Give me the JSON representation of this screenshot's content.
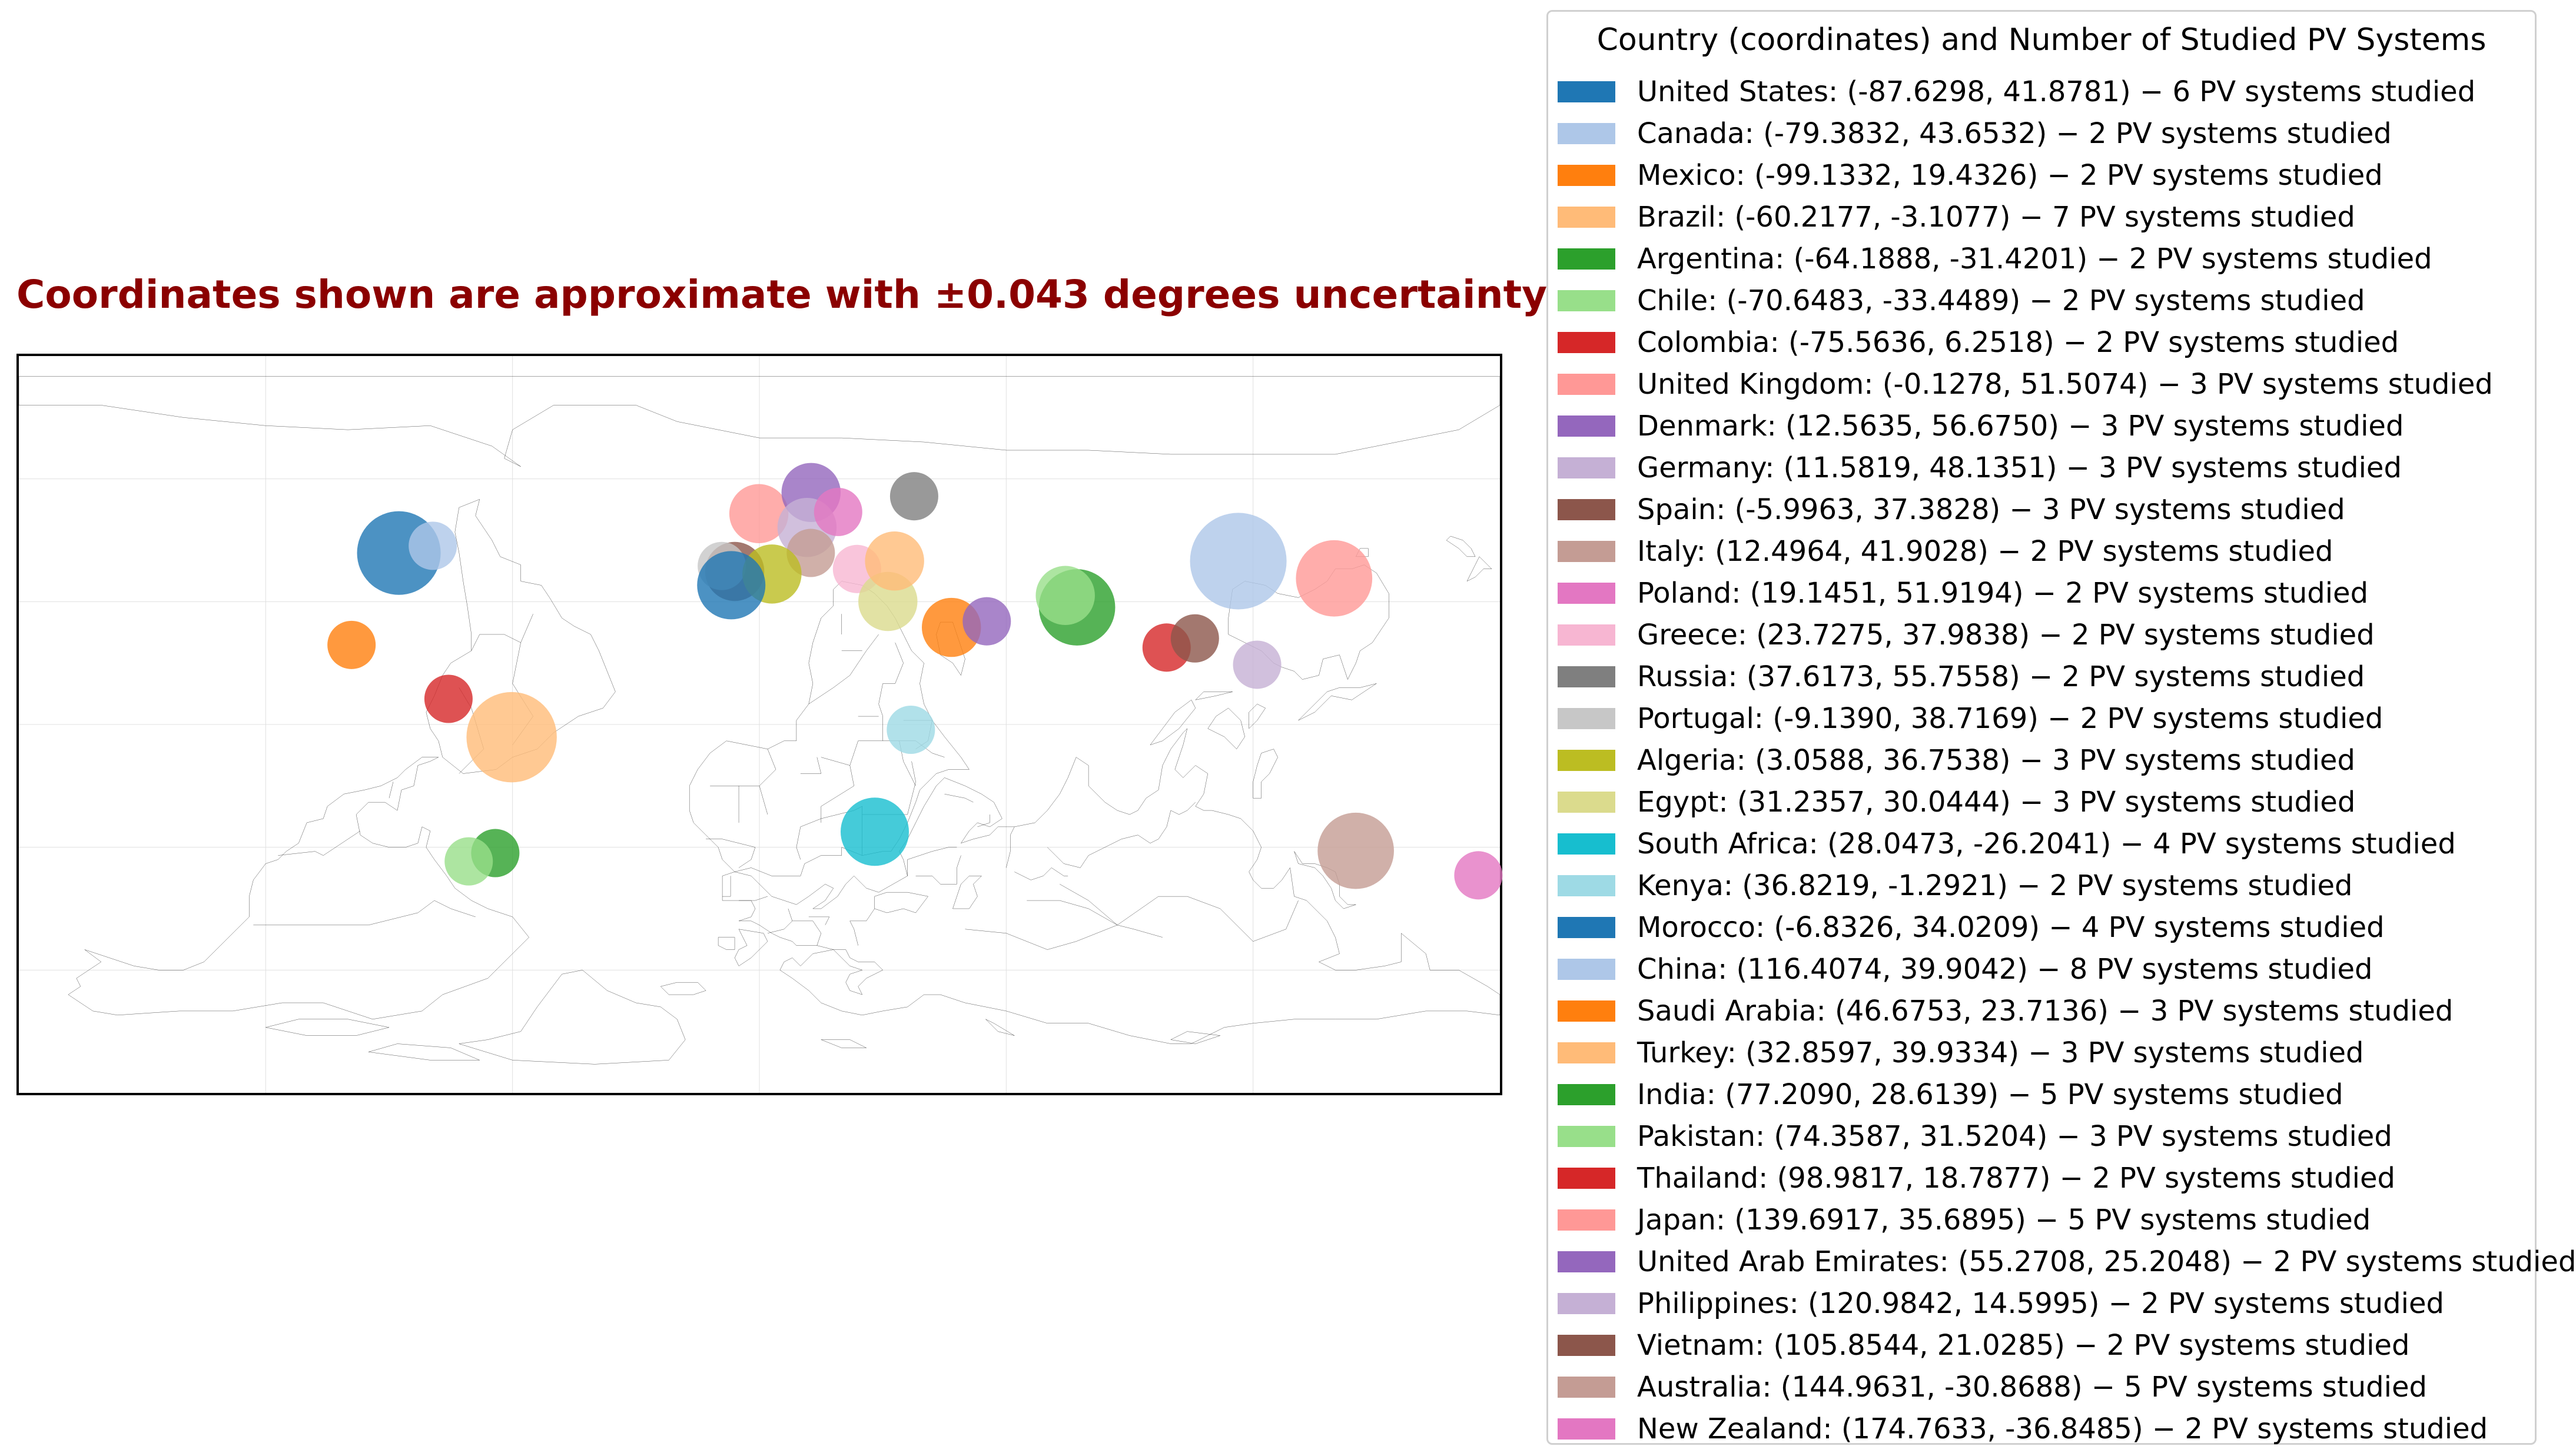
{
  "map": {
    "title": "Coordinates shown are approximate with ±0.043 degrees uncertainty",
    "extent": {
      "lon": [
        -180,
        180
      ],
      "lat": [
        -90,
        90
      ]
    },
    "gridlines": {
      "lon_step": 60,
      "lat_step": 30,
      "visible": true
    }
  },
  "legend": {
    "title": "Country (coordinates) and Number of Studied PV Systems",
    "placement": "right"
  },
  "chart_data": {
    "type": "scatter",
    "title": "Coordinates shown are approximate with ±0.043 degrees uncertainty",
    "points": [
      {
        "country": "United States",
        "lon": -87.6298,
        "lat": 41.8781,
        "count": 6,
        "color": "#1f77b4",
        "label": "United States: (-87.6298, 41.8781) − 6 PV systems studied"
      },
      {
        "country": "Canada",
        "lon": -79.3832,
        "lat": 43.6532,
        "count": 2,
        "color": "#aec7e8",
        "label": "Canada: (-79.3832, 43.6532) − 2 PV systems studied"
      },
      {
        "country": "Mexico",
        "lon": -99.1332,
        "lat": 19.4326,
        "count": 2,
        "color": "#ff7f0e",
        "label": "Mexico: (-99.1332, 19.4326) − 2 PV systems studied"
      },
      {
        "country": "Brazil",
        "lon": -60.2177,
        "lat": -3.1077,
        "count": 7,
        "color": "#ffbb78",
        "label": "Brazil: (-60.2177, -3.1077) − 7 PV systems studied"
      },
      {
        "country": "Argentina",
        "lon": -64.1888,
        "lat": -31.4201,
        "count": 2,
        "color": "#2ca02c",
        "label": "Argentina: (-64.1888, -31.4201) − 2 PV systems studied"
      },
      {
        "country": "Chile",
        "lon": -70.6483,
        "lat": -33.4489,
        "count": 2,
        "color": "#98df8a",
        "label": "Chile: (-70.6483, -33.4489) − 2 PV systems studied"
      },
      {
        "country": "Colombia",
        "lon": -75.5636,
        "lat": 6.2518,
        "count": 2,
        "color": "#d62728",
        "label": "Colombia: (-75.5636, 6.2518) − 2 PV systems studied"
      },
      {
        "country": "United Kingdom",
        "lon": -0.1278,
        "lat": 51.5074,
        "count": 3,
        "color": "#ff9896",
        "label": "United Kingdom: (-0.1278, 51.5074) − 3 PV systems studied"
      },
      {
        "country": "Denmark",
        "lon": 12.5635,
        "lat": 56.675,
        "count": 3,
        "color": "#9467bd",
        "label": "Denmark: (12.5635, 56.6750) − 3 PV systems studied"
      },
      {
        "country": "Germany",
        "lon": 11.5819,
        "lat": 48.1351,
        "count": 3,
        "color": "#c5b0d5",
        "label": "Germany: (11.5819, 48.1351) − 3 PV systems studied"
      },
      {
        "country": "Spain",
        "lon": -5.9963,
        "lat": 37.3828,
        "count": 3,
        "color": "#8c564b",
        "label": "Spain: (-5.9963, 37.3828) − 3 PV systems studied"
      },
      {
        "country": "Italy",
        "lon": 12.4964,
        "lat": 41.9028,
        "count": 2,
        "color": "#c49c94",
        "label": "Italy: (12.4964, 41.9028) − 2 PV systems studied"
      },
      {
        "country": "Poland",
        "lon": 19.1451,
        "lat": 51.9194,
        "count": 2,
        "color": "#e377c2",
        "label": "Poland: (19.1451, 51.9194) − 2 PV systems studied"
      },
      {
        "country": "Greece",
        "lon": 23.7275,
        "lat": 37.9838,
        "count": 2,
        "color": "#f7b6d2",
        "label": "Greece: (23.7275, 37.9838) − 2 PV systems studied"
      },
      {
        "country": "Russia",
        "lon": 37.6173,
        "lat": 55.7558,
        "count": 2,
        "color": "#7f7f7f",
        "label": "Russia: (37.6173, 55.7558) − 2 PV systems studied"
      },
      {
        "country": "Portugal",
        "lon": -9.139,
        "lat": 38.7169,
        "count": 2,
        "color": "#c7c7c7",
        "label": "Portugal: (-9.1390, 38.7169) − 2 PV systems studied"
      },
      {
        "country": "Algeria",
        "lon": 3.0588,
        "lat": 36.7538,
        "count": 3,
        "color": "#bcbd22",
        "label": "Algeria: (3.0588, 36.7538) − 3 PV systems studied"
      },
      {
        "country": "Egypt",
        "lon": 31.2357,
        "lat": 30.0444,
        "count": 3,
        "color": "#dbdb8d",
        "label": "Egypt: (31.2357, 30.0444) − 3 PV systems studied"
      },
      {
        "country": "South Africa",
        "lon": 28.0473,
        "lat": -26.2041,
        "count": 4,
        "color": "#17becf",
        "label": "South Africa: (28.0473, -26.2041) − 4 PV systems studied"
      },
      {
        "country": "Kenya",
        "lon": 36.8219,
        "lat": -1.2921,
        "count": 2,
        "color": "#9edae5",
        "label": "Kenya: (36.8219, -1.2921) − 2 PV systems studied"
      },
      {
        "country": "Morocco",
        "lon": -6.8326,
        "lat": 34.0209,
        "count": 4,
        "color": "#1f77b4",
        "label": "Morocco: (-6.8326, 34.0209) − 4 PV systems studied"
      },
      {
        "country": "China",
        "lon": 116.4074,
        "lat": 39.9042,
        "count": 8,
        "color": "#aec7e8",
        "label": "China: (116.4074, 39.9042) − 8 PV systems studied"
      },
      {
        "country": "Saudi Arabia",
        "lon": 46.6753,
        "lat": 23.7136,
        "count": 3,
        "color": "#ff7f0e",
        "label": "Saudi Arabia: (46.6753, 23.7136) − 3 PV systems studied"
      },
      {
        "country": "Turkey",
        "lon": 32.8597,
        "lat": 39.9334,
        "count": 3,
        "color": "#ffbb78",
        "label": "Turkey: (32.8597, 39.9334) − 3 PV systems studied"
      },
      {
        "country": "India",
        "lon": 77.209,
        "lat": 28.6139,
        "count": 5,
        "color": "#2ca02c",
        "label": "India: (77.2090, 28.6139) − 5 PV systems studied"
      },
      {
        "country": "Pakistan",
        "lon": 74.3587,
        "lat": 31.5204,
        "count": 3,
        "color": "#98df8a",
        "label": "Pakistan: (74.3587, 31.5204) − 3 PV systems studied"
      },
      {
        "country": "Thailand",
        "lon": 98.9817,
        "lat": 18.7877,
        "count": 2,
        "color": "#d62728",
        "label": "Thailand: (98.9817, 18.7877) − 2 PV systems studied"
      },
      {
        "country": "Japan",
        "lon": 139.6917,
        "lat": 35.6895,
        "count": 5,
        "color": "#ff9896",
        "label": "Japan: (139.6917, 35.6895) − 5 PV systems studied"
      },
      {
        "country": "United Arab Emirates",
        "lon": 55.2708,
        "lat": 25.2048,
        "count": 2,
        "color": "#9467bd",
        "label": "United Arab Emirates: (55.2708, 25.2048) − 2 PV systems studied"
      },
      {
        "country": "Philippines",
        "lon": 120.9842,
        "lat": 14.5995,
        "count": 2,
        "color": "#c5b0d5",
        "label": "Philippines: (120.9842, 14.5995) − 2 PV systems studied"
      },
      {
        "country": "Vietnam",
        "lon": 105.8544,
        "lat": 21.0285,
        "count": 2,
        "color": "#8c564b",
        "label": "Vietnam: (105.8544, 21.0285) − 2 PV systems studied"
      },
      {
        "country": "Australia",
        "lon": 144.9631,
        "lat": -30.8688,
        "count": 5,
        "color": "#c49c94",
        "label": "Australia: (144.9631, -30.8688) − 5 PV systems studied"
      },
      {
        "country": "New Zealand",
        "lon": 174.7633,
        "lat": -36.8485,
        "count": 2,
        "color": "#e377c2",
        "label": "New Zealand: (174.7633, -36.8485) − 2 PV systems studied"
      }
    ]
  }
}
